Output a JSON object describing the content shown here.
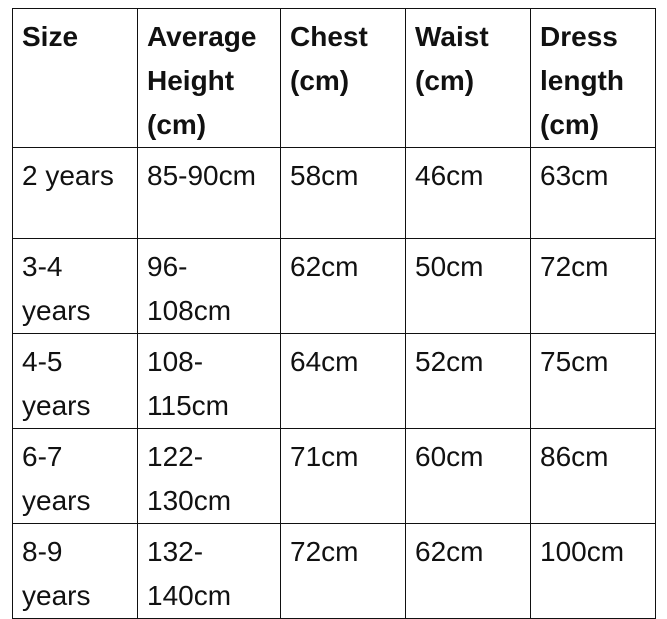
{
  "table": {
    "headers": [
      "Size",
      "Average Height (cm)",
      "Chest (cm)",
      "Waist (cm)",
      "Dress length (cm)"
    ],
    "rows": [
      [
        "2 years",
        "85-90cm",
        "58cm",
        "46cm",
        "63cm"
      ],
      [
        "3-4 years",
        "96-108cm",
        "62cm",
        "50cm",
        "72cm"
      ],
      [
        "4-5 years",
        "108-115cm",
        "64cm",
        "52cm",
        "75cm"
      ],
      [
        "6-7 years",
        "122-130cm",
        "71cm",
        "60cm",
        "86cm"
      ],
      [
        "8-9 years",
        "132-140cm",
        "72cm",
        "62cm",
        "100cm"
      ]
    ]
  }
}
